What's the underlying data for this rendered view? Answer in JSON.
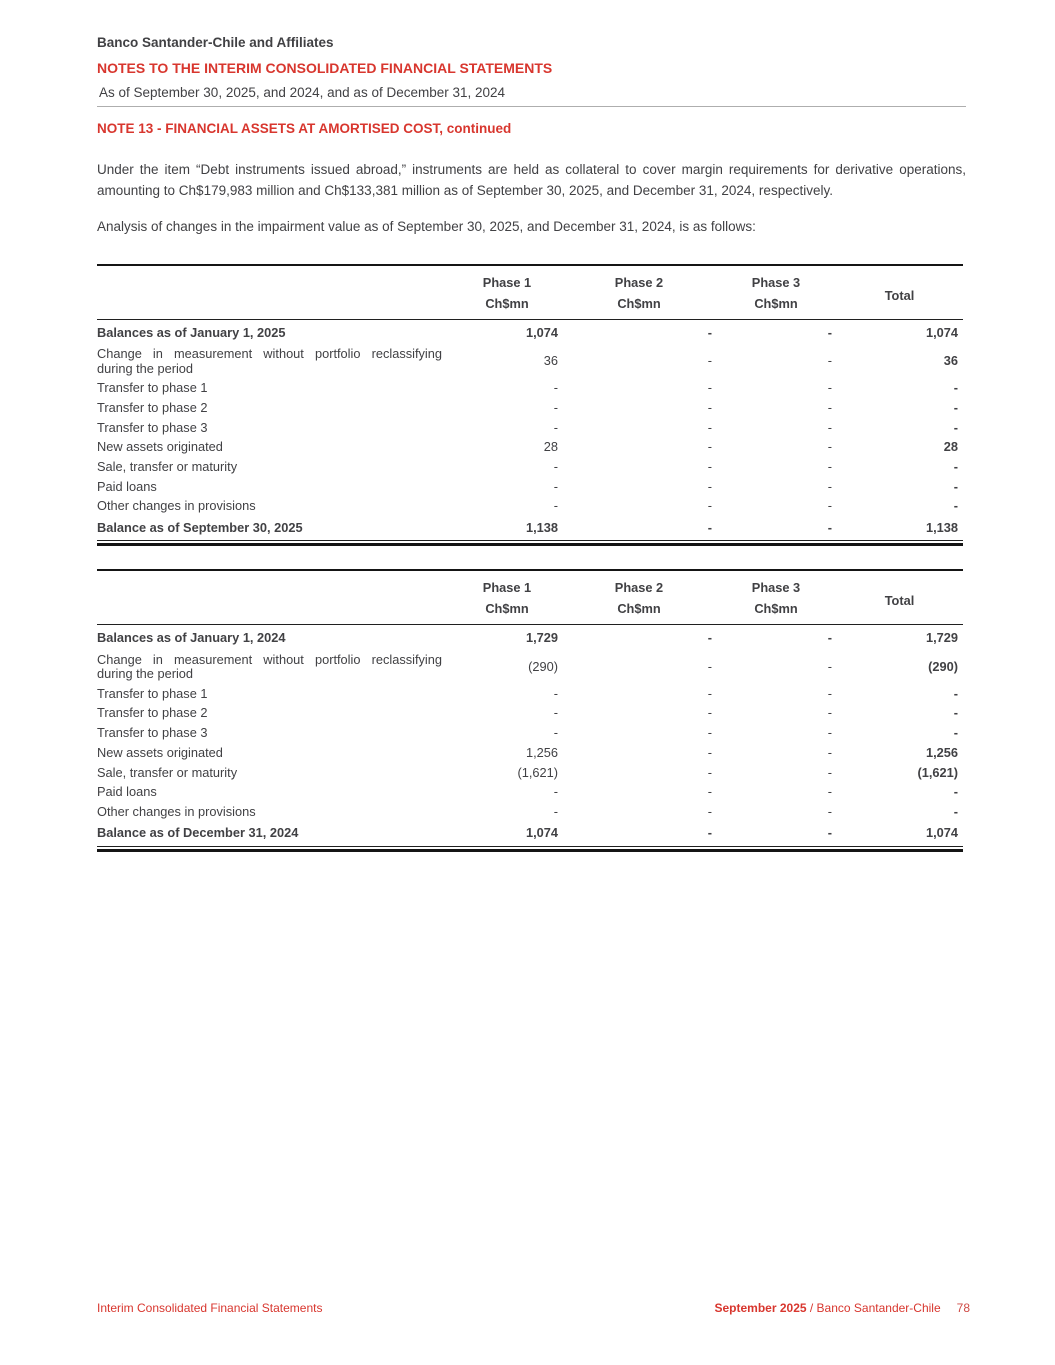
{
  "header": {
    "company": "Banco Santander-Chile and Affiliates",
    "doc_title": "NOTES TO THE INTERIM CONSOLIDATED FINANCIAL STATEMENTS",
    "date_line": "As of September 30, 2025, and 2024, and as of December 31, 2024",
    "note_title": "NOTE 13 - FINANCIAL ASSETS AT AMORTISED COST, continued"
  },
  "paragraphs": {
    "p1": "Under the item “Debt instruments issued abroad,” instruments are held as collateral to cover margin requirements for derivative operations, amounting to Ch$179,983 million and Ch$133,381 million as of September 30, 2025, and December 31, 2024, respectively.",
    "p2": "Analysis of changes in the impairment value as of September 30, 2025, and December 31, 2024, is as follows:"
  },
  "colors": {
    "accent_red": "#d8362e",
    "text_dark": "#414144",
    "rule_gray": "#aeaeae",
    "table_border_black": "#151515"
  },
  "tables": [
    {
      "columns": [
        {
          "label": "Phase 1",
          "sub": "Ch$mn"
        },
        {
          "label": "Phase 2",
          "sub": "Ch$mn"
        },
        {
          "label": "Phase 3",
          "sub": "Ch$mn"
        },
        {
          "label": "Total",
          "sub": ""
        }
      ],
      "rows": [
        {
          "label": "Balances as of January 1, 2025",
          "values": [
            "1,074",
            "-",
            "-",
            "1,074"
          ],
          "bold": true,
          "total_row": false
        },
        {
          "label": "Change in measurement without portfolio reclassifying during the period",
          "values": [
            "36",
            "-",
            "-",
            "36"
          ],
          "bold": false,
          "total_row": false
        },
        {
          "label": "Transfer to phase 1",
          "values": [
            "-",
            "-",
            "-",
            "-"
          ],
          "bold": false,
          "total_row": false
        },
        {
          "label": "Transfer to phase 2",
          "values": [
            "-",
            "-",
            "-",
            "-"
          ],
          "bold": false,
          "total_row": false
        },
        {
          "label": "Transfer to phase 3",
          "values": [
            "-",
            "-",
            "-",
            "-"
          ],
          "bold": false,
          "total_row": false
        },
        {
          "label": "New assets originated",
          "values": [
            "28",
            "-",
            "-",
            "28"
          ],
          "bold": false,
          "total_row": false
        },
        {
          "label": "Sale, transfer or maturity",
          "values": [
            "-",
            "-",
            "-",
            "-"
          ],
          "bold": false,
          "total_row": false
        },
        {
          "label": "Paid loans",
          "values": [
            "-",
            "-",
            "-",
            "-"
          ],
          "bold": false,
          "total_row": false
        },
        {
          "label": "Other changes in provisions",
          "values": [
            "-",
            "-",
            "-",
            "-"
          ],
          "bold": false,
          "total_row": false
        },
        {
          "label": "Balance as of September 30, 2025",
          "values": [
            "1,138",
            "-",
            "-",
            "1,138"
          ],
          "bold": true,
          "total_row": true
        }
      ]
    },
    {
      "columns": [
        {
          "label": "Phase 1",
          "sub": "Ch$mn"
        },
        {
          "label": "Phase 2",
          "sub": "Ch$mn"
        },
        {
          "label": "Phase 3",
          "sub": "Ch$mn"
        },
        {
          "label": "Total",
          "sub": ""
        }
      ],
      "rows": [
        {
          "label": "Balances as of January 1, 2024",
          "values": [
            "1,729",
            "-",
            "-",
            "1,729"
          ],
          "bold": true,
          "total_row": false
        },
        {
          "label": "Change in measurement without portfolio reclassifying during the period",
          "values": [
            "(290)",
            "-",
            "-",
            "(290)"
          ],
          "bold": false,
          "total_row": false
        },
        {
          "label": "Transfer to phase 1",
          "values": [
            "-",
            "-",
            "-",
            "-"
          ],
          "bold": false,
          "total_row": false
        },
        {
          "label": "Transfer to phase 2",
          "values": [
            "-",
            "-",
            "-",
            "-"
          ],
          "bold": false,
          "total_row": false
        },
        {
          "label": "Transfer to phase 3",
          "values": [
            "-",
            "-",
            "-",
            "-"
          ],
          "bold": false,
          "total_row": false
        },
        {
          "label": "New assets originated",
          "values": [
            "1,256",
            "-",
            "-",
            "1,256"
          ],
          "bold": false,
          "total_row": false
        },
        {
          "label": "Sale, transfer or maturity",
          "values": [
            "(1,621)",
            "-",
            "-",
            "(1,621)"
          ],
          "bold": false,
          "total_row": false
        },
        {
          "label": "Paid loans",
          "values": [
            "-",
            "-",
            "-",
            "-"
          ],
          "bold": false,
          "total_row": false
        },
        {
          "label": "Other changes in provisions",
          "values": [
            "-",
            "-",
            "-",
            "-"
          ],
          "bold": false,
          "total_row": false
        },
        {
          "label": "Balance as of December 31, 2024",
          "values": [
            "1,074",
            "-",
            "-",
            "1,074"
          ],
          "bold": true,
          "total_row": true
        }
      ]
    }
  ],
  "footer": {
    "left": "Interim Consolidated Financial Statements",
    "right_bold": "September 2025",
    "right_rest": " / Banco Santander-Chile",
    "page_number": "78"
  }
}
